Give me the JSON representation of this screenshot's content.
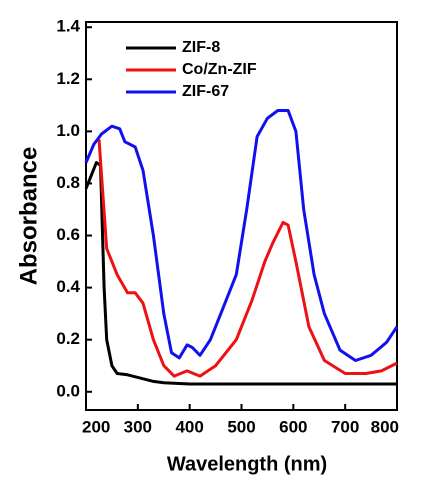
{
  "chart_data": {
    "type": "line",
    "x_label": "Wavelength (nm)",
    "y_label": "Absorbance",
    "xlim": [
      200,
      800
    ],
    "ylim": [
      -0.07,
      1.42
    ],
    "xticks": [
      200,
      300,
      400,
      500,
      600,
      700,
      800
    ],
    "yticks": [
      {
        "value": 0,
        "label": "0.0"
      },
      0.2,
      0.4,
      0.6,
      0.8,
      {
        "value": 1,
        "label": "1.0"
      },
      1.2,
      1.4
    ],
    "grid": false,
    "legend": "top-left",
    "series": [
      {
        "name": "ZIF-8",
        "color": "#000000",
        "x": [
          200,
          210,
          220,
          228,
          235,
          240,
          250,
          260,
          280,
          300,
          330,
          350,
          400,
          500,
          600,
          700,
          800
        ],
        "values": [
          0.78,
          0.83,
          0.88,
          0.87,
          0.4,
          0.2,
          0.1,
          0.07,
          0.065,
          0.055,
          0.04,
          0.035,
          0.03,
          0.03,
          0.03,
          0.03,
          0.03
        ]
      },
      {
        "name": "Co/Zn-ZIF",
        "color": "#ee1111",
        "x": [
          225,
          240,
          260,
          280,
          295,
          310,
          330,
          350,
          370,
          395,
          420,
          450,
          490,
          520,
          545,
          560,
          580,
          590,
          605,
          630,
          660,
          700,
          740,
          770,
          800
        ],
        "values": [
          0.97,
          0.55,
          0.45,
          0.38,
          0.38,
          0.34,
          0.2,
          0.1,
          0.06,
          0.08,
          0.06,
          0.1,
          0.2,
          0.35,
          0.5,
          0.57,
          0.65,
          0.64,
          0.5,
          0.25,
          0.12,
          0.07,
          0.07,
          0.08,
          0.11
        ]
      },
      {
        "name": "ZIF-67",
        "color": "#1111ee",
        "x": [
          200,
          215,
          230,
          250,
          265,
          275,
          295,
          310,
          330,
          350,
          365,
          380,
          395,
          405,
          420,
          440,
          460,
          490,
          510,
          530,
          550,
          570,
          590,
          605,
          620,
          640,
          660,
          690,
          720,
          750,
          780,
          800
        ],
        "values": [
          0.88,
          0.95,
          0.99,
          1.02,
          1.01,
          0.96,
          0.94,
          0.85,
          0.6,
          0.3,
          0.15,
          0.13,
          0.18,
          0.17,
          0.14,
          0.2,
          0.3,
          0.45,
          0.7,
          0.98,
          1.05,
          1.08,
          1.08,
          1.0,
          0.7,
          0.45,
          0.3,
          0.16,
          0.12,
          0.14,
          0.19,
          0.25
        ]
      }
    ]
  }
}
